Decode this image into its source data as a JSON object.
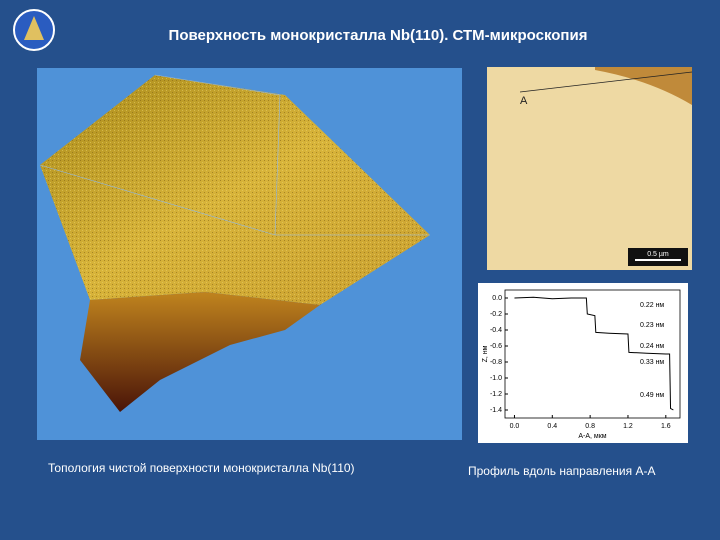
{
  "header": {
    "title": "Поверхность монокристалла Nb(110). СТМ-микроскопия"
  },
  "left_caption": "Топология чистой поверхности монокристалла Nb(110)",
  "right_caption": "Профиль вдоль направления А-А",
  "stm_image": {
    "marker": "A",
    "scale_bar": "0.5 µm"
  },
  "chart_data": {
    "type": "line",
    "x_label": "A-A, мкм",
    "y_label": "Z, нм",
    "x": [
      0,
      0.2,
      0.4,
      0.6,
      0.76,
      0.77,
      0.85,
      0.86,
      1.0,
      1.2,
      1.21,
      1.4,
      1.6,
      1.64,
      1.65,
      1.68
    ],
    "series": [
      {
        "color": "#000000",
        "values": [
          0,
          0.01,
          -0.01,
          0.0,
          0.0,
          -0.2,
          -0.22,
          -0.43,
          -0.44,
          -0.45,
          -0.68,
          -0.69,
          -0.7,
          -0.7,
          -1.38,
          -1.4
        ]
      }
    ],
    "xlim": [
      -0.1,
      1.75
    ],
    "xticks": [
      {
        "value": 0,
        "label": "0.0"
      },
      0.4,
      0.8,
      1.2,
      1.6
    ],
    "ylim": [
      -1.5,
      0.1
    ],
    "yticks": [
      {
        "value": 0,
        "label": "0.0"
      },
      -0.2,
      -0.4,
      -0.6,
      -0.8,
      {
        "value": -1,
        "label": "-1.0"
      },
      -1.2,
      -1.4
    ],
    "annotations": [
      "0.22 нм",
      "0.23 нм",
      "0.24 нм",
      "0.33 нм",
      "0.49 нм"
    ]
  }
}
